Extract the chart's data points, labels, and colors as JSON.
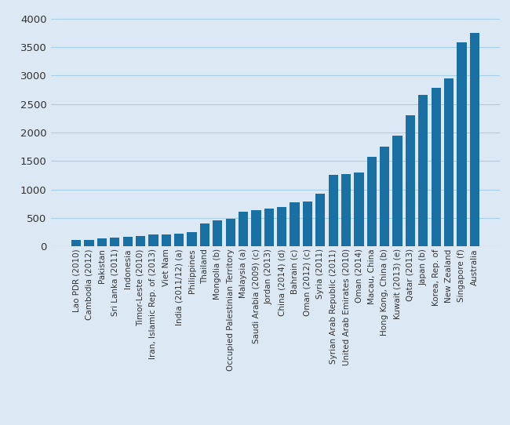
{
  "categories": [
    "Lao PDR (2010)",
    "Cambodia (2012)",
    "Pakistan",
    "Sri Lanka (2011)",
    "Indonesia",
    "Timor-Leste (2010)",
    "Iran, Islamic Rep. of (2013)",
    "Viet Nam",
    "India (2011/12) (a)",
    "Philippines",
    "Thailand",
    "Mongolia (b)",
    "Occupied Palestinian Territory",
    "Malaysia (a)",
    "Saudi Arabia (2009) (c)",
    "Jordan (2013)",
    "China (2014) (d)",
    "Bahrain (c)",
    "Oman (2012) (c)",
    "Syria (2011)",
    "Syrian Arab Republic (2011)",
    "United Arab Emirates (2010)",
    "Oman (2014)",
    "Macau, China",
    "Hong Kong, China (b)",
    "Kuwait (2013) (e)",
    "Qatar (2013)",
    "Japan (b)",
    "Korea, Rep. of",
    "New Zealand",
    "Singapore (f)",
    "Australia"
  ],
  "values": [
    110,
    121,
    148,
    153,
    168,
    190,
    213,
    215,
    225,
    247,
    400,
    455,
    480,
    610,
    640,
    660,
    695,
    780,
    795,
    930,
    1250,
    1270,
    1300,
    1570,
    1750,
    1950,
    2300,
    2660,
    2780,
    2950,
    3580,
    3750
  ],
  "bar_color": "#1a6fa3",
  "background_color": "#dce9f5",
  "grid_color": "#a8d0e8",
  "tick_label_color": "#333333",
  "ylim": [
    0,
    4100
  ],
  "yticks": [
    0,
    500,
    1000,
    1500,
    2000,
    2500,
    3000,
    3500,
    4000
  ],
  "tick_fontsize": 7.5,
  "ytick_fontsize": 9.5
}
